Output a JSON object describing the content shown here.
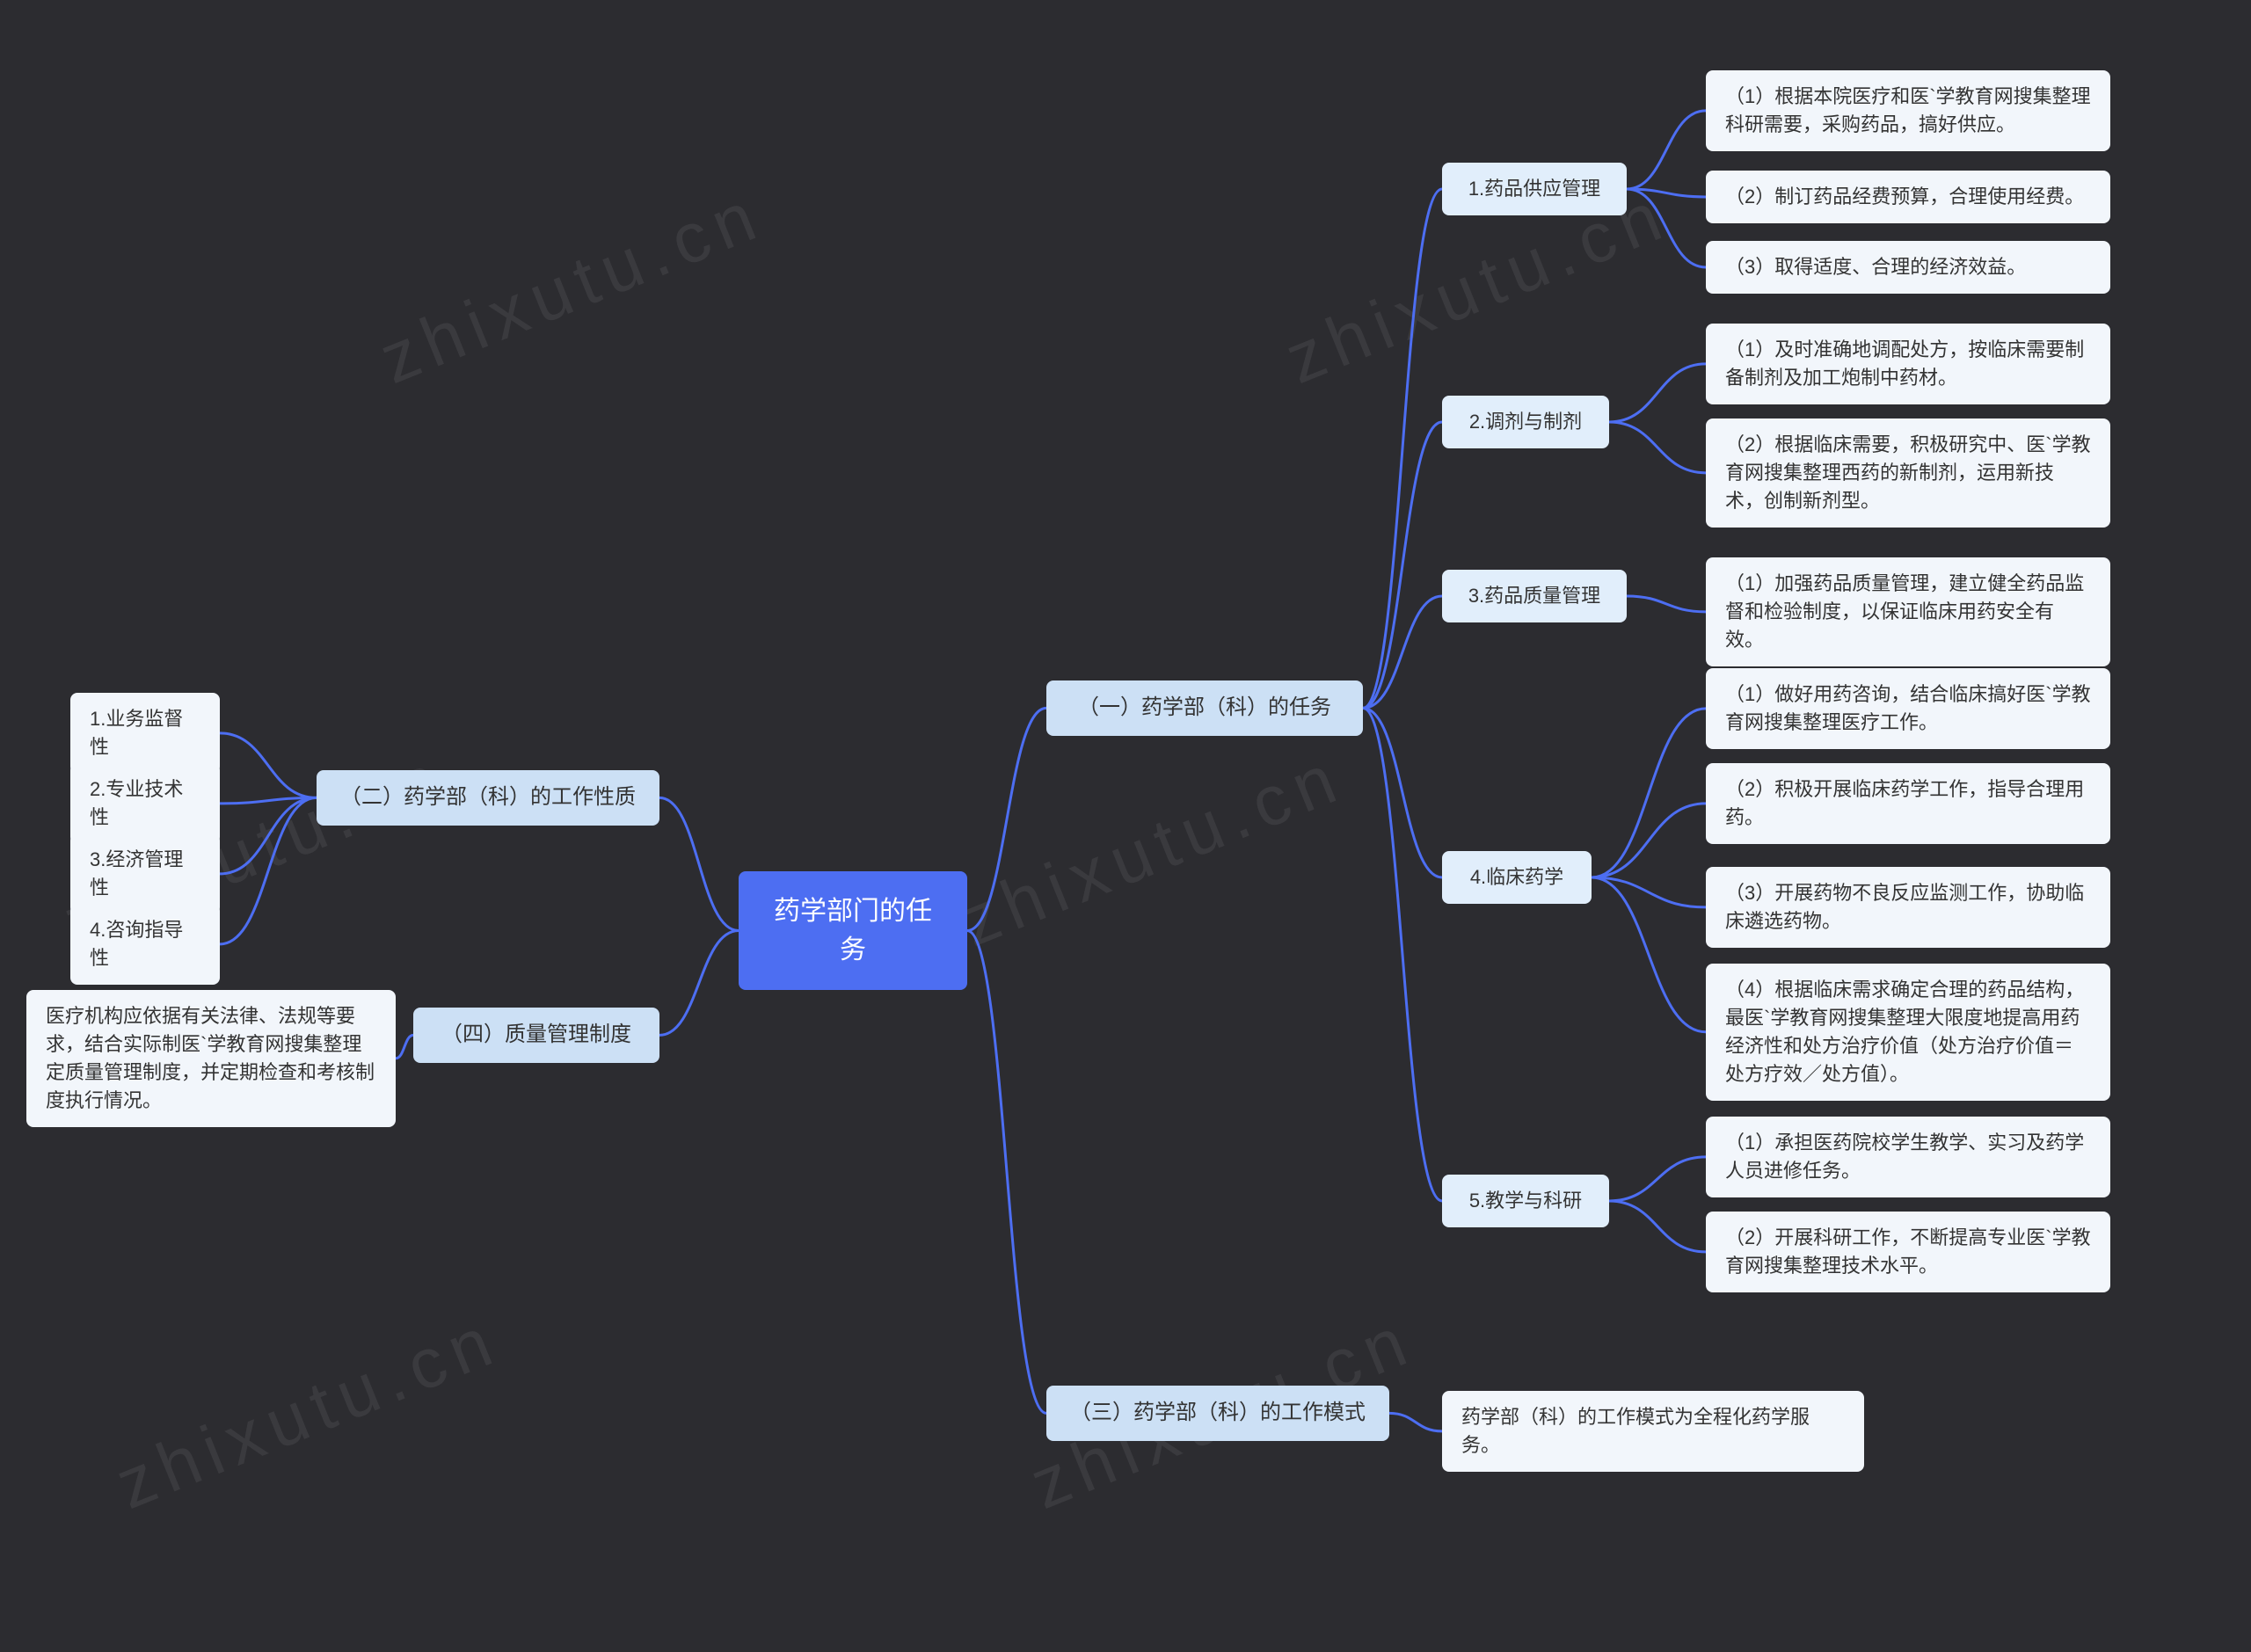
{
  "colors": {
    "bg": "#2c2c30",
    "root_bg": "#4d6ef2",
    "root_text": "#ffffff",
    "lvl1_bg": "#cce0f5",
    "lvl2_bg": "#e1eefb",
    "leaf_bg": "#f2f6fb",
    "node_text": "#333333",
    "connector": "#4d6ef2"
  },
  "root": {
    "label": "药学部门的任务"
  },
  "right": {
    "b1": {
      "label": "（一）药学部（科）的任务",
      "children": {
        "c1": {
          "label": "1.药品供应管理",
          "leaves": [
            "（1）根据本院医疗和医`学教育网搜集整理科研需要，采购药品，搞好供应。",
            "（2）制订药品经费预算，合理使用经费。",
            "（3）取得适度、合理的经济效益。"
          ]
        },
        "c2": {
          "label": "2.调剂与制剂",
          "leaves": [
            "（1）及时准确地调配处方，按临床需要制备制剂及加工炮制中药材。",
            "（2）根据临床需要，积极研究中、医`学教育网搜集整理西药的新制剂，运用新技术，创制新剂型。"
          ]
        },
        "c3": {
          "label": "3.药品质量管理",
          "leaves": [
            "（1）加强药品质量管理，建立健全药品监督和检验制度，以保证临床用药安全有效。"
          ]
        },
        "c4": {
          "label": "4.临床药学",
          "leaves": [
            "（1）做好用药咨询，结合临床搞好医`学教育网搜集整理医疗工作。",
            "（2）积极开展临床药学工作，指导合理用药。",
            "（3）开展药物不良反应监测工作，协助临床遴选药物。",
            "（4）根据临床需求确定合理的药品结构，最医`学教育网搜集整理大限度地提高用药经济性和处方治疗价值（处方治疗价值＝处方疗效／处方值）。"
          ]
        },
        "c5": {
          "label": "5.教学与科研",
          "leaves": [
            "（1）承担医药院校学生教学、实习及药学人员进修任务。",
            "（2）开展科研工作，不断提高专业医`学教育网搜集整理技术水平。"
          ]
        }
      }
    },
    "b3": {
      "label": "（三）药学部（科）的工作模式",
      "leaf": "药学部（科）的工作模式为全程化药学服务。"
    }
  },
  "left": {
    "b2": {
      "label": "（二）药学部（科）的工作性质",
      "leaves": [
        "1.业务监督性",
        "2.专业技术性",
        "3.经济管理性",
        "4.咨询指导性"
      ]
    },
    "b4": {
      "label": "（四）质量管理制度",
      "leaf": "医疗机构应依据有关法律、法规等要求，结合实际制医`学教育网搜集整理定质量管理制度，并定期检查和考核制度执行情况。"
    }
  },
  "watermark": "zhixutu.cn"
}
